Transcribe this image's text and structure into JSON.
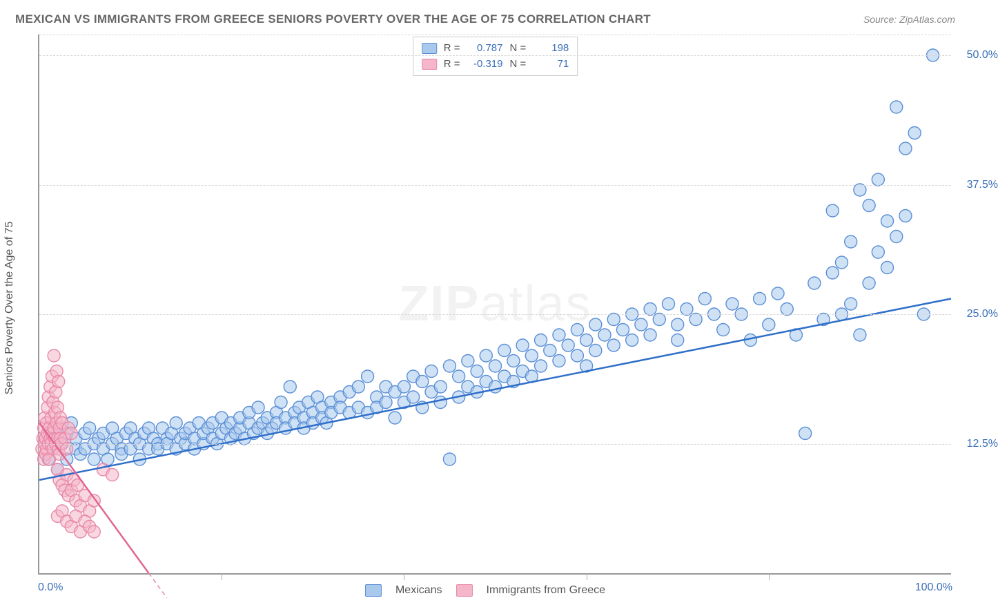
{
  "title": "MEXICAN VS IMMIGRANTS FROM GREECE SENIORS POVERTY OVER THE AGE OF 75 CORRELATION CHART",
  "source_label": "Source: ZipAtlas.com",
  "ylabel": "Seniors Poverty Over the Age of 75",
  "watermark": "ZIPatlas",
  "chart": {
    "type": "scatter",
    "xlim": [
      0,
      100
    ],
    "ylim": [
      0,
      52
    ],
    "yticks": [
      12.5,
      25.0,
      37.5,
      50.0
    ],
    "ytick_labels": [
      "12.5%",
      "25.0%",
      "37.5%",
      "50.0%"
    ],
    "xticks": [
      0,
      20,
      40,
      60,
      80,
      100
    ],
    "xtick_end_labels": {
      "left": "0.0%",
      "right": "100.0%"
    },
    "background_color": "#ffffff",
    "grid_color": "#d8d8d8",
    "grid_dash": "4,4",
    "marker_radius": 9,
    "marker_stroke_width": 1.4,
    "trendline_width": 2.5
  },
  "series": [
    {
      "name": "Mexicans",
      "fill_color": "#a8c8ec",
      "stroke_color": "#5b8fd6",
      "fill_opacity": 0.55,
      "R": "0.787",
      "N": "198",
      "trendline": {
        "x1": 0,
        "y1": 9.0,
        "x2": 100,
        "y2": 26.5,
        "color": "#2f6fc9",
        "dash": "none"
      },
      "points": [
        [
          1,
          11
        ],
        [
          1.5,
          12
        ],
        [
          2,
          13
        ],
        [
          2,
          10
        ],
        [
          2.5,
          12.5
        ],
        [
          3,
          11
        ],
        [
          3,
          13.5
        ],
        [
          3.5,
          14.5
        ],
        [
          4,
          12
        ],
        [
          4,
          13
        ],
        [
          4.5,
          11.5
        ],
        [
          5,
          12
        ],
        [
          5,
          13.5
        ],
        [
          5.5,
          14
        ],
        [
          6,
          11
        ],
        [
          6,
          12.5
        ],
        [
          6.5,
          13
        ],
        [
          7,
          12
        ],
        [
          7,
          13.5
        ],
        [
          7.5,
          11
        ],
        [
          8,
          12.5
        ],
        [
          8,
          14
        ],
        [
          8.5,
          13
        ],
        [
          9,
          12
        ],
        [
          9,
          11.5
        ],
        [
          9.5,
          13.5
        ],
        [
          10,
          12
        ],
        [
          10,
          14
        ],
        [
          10.5,
          13
        ],
        [
          11,
          12.5
        ],
        [
          11,
          11
        ],
        [
          11.5,
          13.5
        ],
        [
          12,
          12
        ],
        [
          12,
          14
        ],
        [
          12.5,
          13
        ],
        [
          13,
          12.5
        ],
        [
          13,
          12
        ],
        [
          13.5,
          14
        ],
        [
          14,
          13
        ],
        [
          14,
          12.5
        ],
        [
          14.5,
          13.5
        ],
        [
          15,
          12
        ],
        [
          15,
          14.5
        ],
        [
          15.5,
          13
        ],
        [
          16,
          12.5
        ],
        [
          16,
          13.5
        ],
        [
          16.5,
          14
        ],
        [
          17,
          12
        ],
        [
          17,
          13
        ],
        [
          17.5,
          14.5
        ],
        [
          18,
          12.5
        ],
        [
          18,
          13.5
        ],
        [
          18.5,
          14
        ],
        [
          19,
          13
        ],
        [
          19,
          14.5
        ],
        [
          19.5,
          12.5
        ],
        [
          20,
          13.5
        ],
        [
          20,
          15
        ],
        [
          20.5,
          14
        ],
        [
          21,
          13
        ],
        [
          21,
          14.5
        ],
        [
          21.5,
          13.5
        ],
        [
          22,
          14
        ],
        [
          22,
          15
        ],
        [
          22.5,
          13
        ],
        [
          23,
          14.5
        ],
        [
          23,
          15.5
        ],
        [
          23.5,
          13.5
        ],
        [
          24,
          14
        ],
        [
          24,
          16
        ],
        [
          24.5,
          14.5
        ],
        [
          25,
          15
        ],
        [
          25,
          13.5
        ],
        [
          25.5,
          14
        ],
        [
          26,
          15.5
        ],
        [
          26,
          14.5
        ],
        [
          26.5,
          16.5
        ],
        [
          27,
          15
        ],
        [
          27,
          14
        ],
        [
          27.5,
          18
        ],
        [
          28,
          15.5
        ],
        [
          28,
          14.5
        ],
        [
          28.5,
          16
        ],
        [
          29,
          15
        ],
        [
          29,
          14
        ],
        [
          29.5,
          16.5
        ],
        [
          30,
          15.5
        ],
        [
          30,
          14.5
        ],
        [
          30.5,
          17
        ],
        [
          31,
          16
        ],
        [
          31,
          15
        ],
        [
          31.5,
          14.5
        ],
        [
          32,
          16.5
        ],
        [
          32,
          15.5
        ],
        [
          33,
          17
        ],
        [
          33,
          16
        ],
        [
          34,
          15.5
        ],
        [
          34,
          17.5
        ],
        [
          35,
          16
        ],
        [
          35,
          18
        ],
        [
          36,
          15.5
        ],
        [
          36,
          19
        ],
        [
          37,
          17
        ],
        [
          37,
          16
        ],
        [
          38,
          18
        ],
        [
          38,
          16.5
        ],
        [
          39,
          17.5
        ],
        [
          39,
          15
        ],
        [
          40,
          18
        ],
        [
          40,
          16.5
        ],
        [
          41,
          19
        ],
        [
          41,
          17
        ],
        [
          42,
          18.5
        ],
        [
          42,
          16
        ],
        [
          43,
          19.5
        ],
        [
          43,
          17.5
        ],
        [
          44,
          18
        ],
        [
          44,
          16.5
        ],
        [
          45,
          20
        ],
        [
          45,
          11
        ],
        [
          46,
          19
        ],
        [
          46,
          17
        ],
        [
          47,
          20.5
        ],
        [
          47,
          18
        ],
        [
          48,
          19.5
        ],
        [
          48,
          17.5
        ],
        [
          49,
          21
        ],
        [
          49,
          18.5
        ],
        [
          50,
          20
        ],
        [
          50,
          18
        ],
        [
          51,
          21.5
        ],
        [
          51,
          19
        ],
        [
          52,
          20.5
        ],
        [
          52,
          18.5
        ],
        [
          53,
          22
        ],
        [
          53,
          19.5
        ],
        [
          54,
          21
        ],
        [
          54,
          19
        ],
        [
          55,
          22.5
        ],
        [
          55,
          20
        ],
        [
          56,
          21.5
        ],
        [
          57,
          23
        ],
        [
          57,
          20.5
        ],
        [
          58,
          22
        ],
        [
          59,
          23.5
        ],
        [
          59,
          21
        ],
        [
          60,
          22.5
        ],
        [
          60,
          20
        ],
        [
          61,
          24
        ],
        [
          61,
          21.5
        ],
        [
          62,
          23
        ],
        [
          63,
          24.5
        ],
        [
          63,
          22
        ],
        [
          64,
          23.5
        ],
        [
          65,
          25
        ],
        [
          65,
          22.5
        ],
        [
          66,
          24
        ],
        [
          67,
          25.5
        ],
        [
          67,
          23
        ],
        [
          68,
          24.5
        ],
        [
          69,
          26
        ],
        [
          70,
          24
        ],
        [
          70,
          22.5
        ],
        [
          71,
          25.5
        ],
        [
          72,
          24.5
        ],
        [
          73,
          26.5
        ],
        [
          74,
          25
        ],
        [
          75,
          23.5
        ],
        [
          76,
          26
        ],
        [
          77,
          25
        ],
        [
          78,
          22.5
        ],
        [
          79,
          26.5
        ],
        [
          80,
          24
        ],
        [
          81,
          27
        ],
        [
          82,
          25.5
        ],
        [
          83,
          23
        ],
        [
          84,
          13.5
        ],
        [
          85,
          28
        ],
        [
          86,
          24.5
        ],
        [
          87,
          29
        ],
        [
          87,
          35
        ],
        [
          88,
          30
        ],
        [
          88,
          25
        ],
        [
          89,
          32
        ],
        [
          89,
          26
        ],
        [
          90,
          37
        ],
        [
          90,
          23
        ],
        [
          91,
          35.5
        ],
        [
          91,
          28
        ],
        [
          92,
          31
        ],
        [
          92,
          38
        ],
        [
          93,
          34
        ],
        [
          93,
          29.5
        ],
        [
          94,
          45
        ],
        [
          94,
          32.5
        ],
        [
          95,
          41
        ],
        [
          95,
          34.5
        ],
        [
          96,
          42.5
        ],
        [
          97,
          25
        ],
        [
          98,
          50
        ]
      ]
    },
    {
      "name": "Immigrants from Greece",
      "fill_color": "#f4b6c8",
      "stroke_color": "#e888a8",
      "fill_opacity": 0.55,
      "R": "-0.319",
      "N": "71",
      "trendline": {
        "x1": 0,
        "y1": 14.5,
        "x2": 12,
        "y2": 0,
        "color": "#e06694",
        "dash": "none"
      },
      "trendline_ext": {
        "x1": 12,
        "y1": 0,
        "x2": 14,
        "y2": -2.4,
        "color": "#e888a8",
        "dash": "6,5"
      },
      "points": [
        [
          0.3,
          12
        ],
        [
          0.4,
          13
        ],
        [
          0.5,
          11
        ],
        [
          0.5,
          14
        ],
        [
          0.6,
          12.5
        ],
        [
          0.6,
          15
        ],
        [
          0.7,
          13
        ],
        [
          0.7,
          11.5
        ],
        [
          0.8,
          14.5
        ],
        [
          0.8,
          12
        ],
        [
          0.9,
          13.5
        ],
        [
          0.9,
          16
        ],
        [
          1.0,
          12.5
        ],
        [
          1.0,
          17
        ],
        [
          1.1,
          14
        ],
        [
          1.1,
          11
        ],
        [
          1.2,
          13
        ],
        [
          1.2,
          18
        ],
        [
          1.3,
          15
        ],
        [
          1.3,
          12.5
        ],
        [
          1.4,
          19
        ],
        [
          1.4,
          13.5
        ],
        [
          1.5,
          16.5
        ],
        [
          1.5,
          12
        ],
        [
          1.6,
          14
        ],
        [
          1.6,
          21
        ],
        [
          1.7,
          15.5
        ],
        [
          1.7,
          13
        ],
        [
          1.8,
          17.5
        ],
        [
          1.8,
          12.5
        ],
        [
          1.9,
          14.5
        ],
        [
          1.9,
          19.5
        ],
        [
          2.0,
          13
        ],
        [
          2.0,
          16
        ],
        [
          2.1,
          12
        ],
        [
          2.1,
          18.5
        ],
        [
          2.2,
          14
        ],
        [
          2.2,
          11.5
        ],
        [
          2.3,
          15
        ],
        [
          2.3,
          13
        ],
        [
          2.4,
          12.5
        ],
        [
          2.5,
          14.5
        ],
        [
          2.8,
          13
        ],
        [
          3.0,
          12
        ],
        [
          3.2,
          14
        ],
        [
          3.5,
          13.5
        ],
        [
          2,
          10
        ],
        [
          2.2,
          9
        ],
        [
          2.5,
          8.5
        ],
        [
          2.8,
          8
        ],
        [
          3,
          9.5
        ],
        [
          3.2,
          7.5
        ],
        [
          3.5,
          8
        ],
        [
          3.8,
          9
        ],
        [
          4,
          7
        ],
        [
          4.2,
          8.5
        ],
        [
          4.5,
          6.5
        ],
        [
          5,
          7.5
        ],
        [
          5.5,
          6
        ],
        [
          6,
          7
        ],
        [
          2,
          5.5
        ],
        [
          2.5,
          6
        ],
        [
          3,
          5
        ],
        [
          3.5,
          4.5
        ],
        [
          4,
          5.5
        ],
        [
          4.5,
          4
        ],
        [
          5,
          5
        ],
        [
          5.5,
          4.5
        ],
        [
          6,
          4
        ],
        [
          7,
          10
        ],
        [
          8,
          9.5
        ]
      ]
    }
  ],
  "legend_stats_labels": {
    "R": "R =",
    "N": "N ="
  },
  "bottom_legend": [
    "Mexicans",
    "Immigrants from Greece"
  ]
}
